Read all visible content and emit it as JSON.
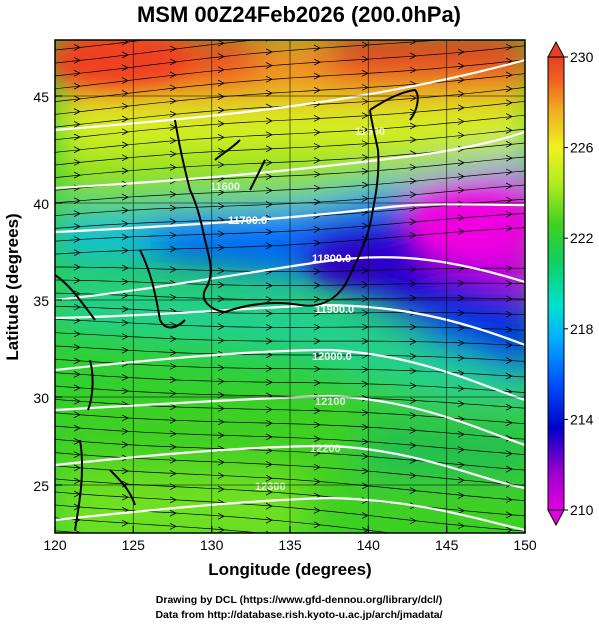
{
  "title": "MSM 00Z24Feb2026 (200.0hPa)",
  "xlabel": "Longitude (degrees)",
  "ylabel": "Latitude  (degrees)",
  "credit_line1": "Drawing by DCL (https://www.gfd-dennou.org/library/dcl/)",
  "credit_line2": "Data from http://database.rish.kyoto-u.ac.jp/arch/jmadata/",
  "x_ticks": [
    "120",
    "125",
    "130",
    "135",
    "140",
    "145",
    "150"
  ],
  "y_ticks": [
    "25",
    "30",
    "35",
    "40",
    "45"
  ],
  "colorbar": {
    "ticks": [
      "230",
      "226",
      "222",
      "218",
      "214",
      "210"
    ],
    "colors": [
      "#cc00cc",
      "#e000e0",
      "#7a00b8",
      "#0000c8",
      "#0040ff",
      "#00a0ff",
      "#00e0e0",
      "#00e080",
      "#20d020",
      "#80e020",
      "#d0f020",
      "#f0e020",
      "#f0c020",
      "#f08020",
      "#f04020"
    ]
  },
  "chart_data": {
    "type": "heatmap",
    "title": "MSM 00Z24Feb2026 (200.0hPa)",
    "xlabel": "Longitude (degrees)",
    "ylabel": "Latitude  (degrees)",
    "xlim": [
      120,
      150
    ],
    "ylim": [
      22.5,
      47.5
    ],
    "colorbar_range": [
      210,
      230
    ],
    "colorbar_ticks": [
      210,
      214,
      218,
      222,
      226,
      230
    ],
    "contour_labels": [
      "11700.0",
      "11800.0",
      "11900.0",
      "12000.0"
    ],
    "contour_labels_partial": [
      "11600",
      "11500",
      "12100",
      "12200",
      "12300"
    ],
    "grid": true,
    "legend": "colorbar-right"
  }
}
